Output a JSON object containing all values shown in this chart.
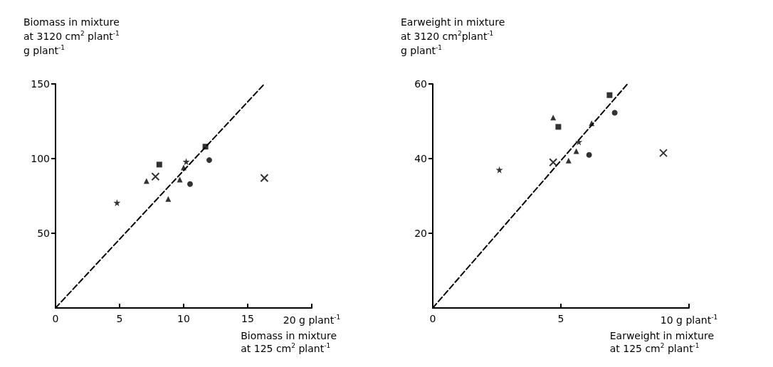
{
  "chart_data": [
    {
      "type": "scatter",
      "ylabel": "Biomass in mixture\nat 3120 cm$^{2}$ plant$^{-1}$\ng plant$^{-1}$",
      "xlabel": "Biomass in mixture\nat 125 cm$^{2}$ plant$^{-1}$",
      "xlim": [
        0,
        20
      ],
      "xticks": [
        0,
        5,
        10,
        15,
        {
          "value": 20,
          "label": "20 g plant$^{-1}$"
        }
      ],
      "ylim": [
        0,
        150
      ],
      "yticks": [
        50,
        100,
        150
      ],
      "series": [
        {
          "type": "line",
          "color": "#000000",
          "marker": "none",
          "line_style": "dashed",
          "x": [
            0,
            16.3
          ],
          "values": [
            0,
            150
          ]
        },
        {
          "color": "#000000",
          "marker": "star",
          "x": [
            4.8
          ],
          "values": [
            70.5
          ]
        },
        {
          "color": "#000000",
          "marker": "cross",
          "x": [
            7.8
          ],
          "values": [
            88
          ]
        },
        {
          "color": "#000000",
          "marker": "triangle",
          "x": [
            7.1
          ],
          "values": [
            85
          ]
        },
        {
          "color": "#000000",
          "marker": "square",
          "x": [
            8.1
          ],
          "values": [
            96
          ]
        },
        {
          "color": "#000000",
          "marker": "triangle",
          "x": [
            8.8
          ],
          "values": [
            73
          ]
        },
        {
          "color": "#000000",
          "marker": "triangle",
          "x": [
            9.7
          ],
          "values": [
            86
          ]
        },
        {
          "color": "#000000",
          "marker": "circle",
          "x": [
            10.5
          ],
          "values": [
            83
          ]
        },
        {
          "color": "#000000",
          "marker": "triangle",
          "x": [
            10
          ],
          "values": [
            94
          ]
        },
        {
          "color": "#000000",
          "marker": "star",
          "x": [
            10.2
          ],
          "values": [
            98
          ]
        },
        {
          "color": "#000000",
          "marker": "square",
          "x": [
            11.7
          ],
          "values": [
            108
          ]
        },
        {
          "color": "#000000",
          "marker": "circle",
          "x": [
            12
          ],
          "values": [
            99
          ]
        },
        {
          "color": "#000000",
          "marker": "cross",
          "x": [
            16.3
          ],
          "values": [
            87
          ]
        }
      ]
    },
    {
      "type": "scatter",
      "ylabel": "Earweight in mixture\nat 3120 cm$^{2}$plant$^{-1}$\ng plant$^{-1}$",
      "xlabel": "Earweight in mixture\nat 125 cm$^{2}$ plant$^{-1}$",
      "xlim": [
        0,
        10
      ],
      "xticks": [
        0,
        5,
        {
          "value": 10,
          "label": "10 g plant$^{-1}$"
        }
      ],
      "ylim": [
        0,
        60
      ],
      "yticks": [
        20,
        40,
        60
      ],
      "series": [
        {
          "type": "line",
          "color": "#000000",
          "marker": "none",
          "line_style": "dashed",
          "x": [
            0,
            7.6
          ],
          "values": [
            0,
            60
          ]
        },
        {
          "color": "#000000",
          "marker": "star",
          "x": [
            2.6
          ],
          "values": [
            37
          ]
        },
        {
          "color": "#000000",
          "marker": "cross",
          "x": [
            4.7
          ],
          "values": [
            39
          ]
        },
        {
          "color": "#000000",
          "marker": "triangle",
          "x": [
            4.7
          ],
          "values": [
            51
          ]
        },
        {
          "color": "#000000",
          "marker": "square",
          "x": [
            4.9
          ],
          "values": [
            48.5
          ]
        },
        {
          "color": "#000000",
          "marker": "triangle",
          "x": [
            5.3
          ],
          "values": [
            39.5
          ]
        },
        {
          "color": "#000000",
          "marker": "triangle",
          "x": [
            5.6
          ],
          "values": [
            42
          ]
        },
        {
          "color": "#000000",
          "marker": "circle",
          "x": [
            6.1
          ],
          "values": [
            41
          ]
        },
        {
          "color": "#000000",
          "marker": "triangle",
          "x": [
            6.2
          ],
          "values": [
            49.5
          ]
        },
        {
          "color": "#000000",
          "marker": "star",
          "x": [
            5.7
          ],
          "values": [
            44.5
          ]
        },
        {
          "color": "#000000",
          "marker": "square",
          "x": [
            6.9
          ],
          "values": [
            57
          ]
        },
        {
          "color": "#000000",
          "marker": "circle",
          "x": [
            7.1
          ],
          "values": [
            52.3
          ]
        },
        {
          "color": "#000000",
          "marker": "cross",
          "x": [
            9
          ],
          "values": [
            41.5
          ]
        }
      ]
    }
  ]
}
